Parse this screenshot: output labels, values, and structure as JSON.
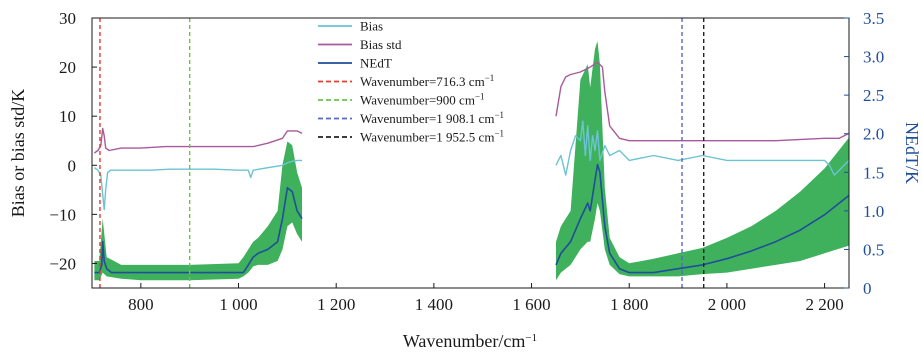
{
  "chart_data": {
    "type": "line",
    "xlabel": "Wavenumber/cm",
    "xlabel_sup": "−1",
    "ylabel": "Bias or bias std/K",
    "y2label": "NEdT/K",
    "xlim": [
      700,
      2250
    ],
    "ylim": [
      -25,
      30
    ],
    "y2lim": [
      0,
      3.5
    ],
    "x_ticks": [
      800,
      1000,
      1200,
      1400,
      1600,
      1800,
      2000,
      2200
    ],
    "x_tick_labels": [
      "800",
      "1 000",
      "1 200",
      "1 400",
      "1 600",
      "1 800",
      "2 000",
      "2 200"
    ],
    "y_ticks": [
      -20,
      -10,
      0,
      10,
      20,
      30
    ],
    "y_tick_labels": [
      "−20",
      "−10",
      "0",
      "10",
      "20",
      "30"
    ],
    "y2_ticks": [
      0,
      0.5,
      1.0,
      1.5,
      2.0,
      2.5,
      3.0,
      3.5
    ],
    "y2_tick_labels": [
      "0",
      "0.5",
      "1.0",
      "1.5",
      "2.0",
      "2.5",
      "3.0",
      "3.5"
    ],
    "colors": {
      "bias": "#6bc3d3",
      "bias_std": "#a75a9c",
      "nedt": "#1f4e9a",
      "band": "#2aa84a",
      "vline_716": "#e03c2f",
      "vline_900": "#6cc24a",
      "vline_1908": "#5866c8",
      "vline_1952": "#222222",
      "axis_right": "#1f4e9a"
    },
    "legend": [
      {
        "label": "Bias",
        "key": "bias",
        "style": "solid"
      },
      {
        "label": "Bias std",
        "key": "bias_std",
        "style": "solid"
      },
      {
        "label": "NEdT",
        "key": "nedt",
        "style": "solid"
      },
      {
        "label": "Wavenumber=716.3 cm",
        "sup": "−1",
        "key": "vline_716",
        "style": "dashed"
      },
      {
        "label": "Wavenumber=900 cm",
        "sup": "−1",
        "key": "vline_900",
        "style": "dashed"
      },
      {
        "label": "Wavenumber=1 908.1 cm",
        "sup": "−1",
        "key": "vline_1908",
        "style": "dashed"
      },
      {
        "label": "Wavenumber=1 952.5 cm",
        "sup": "−1",
        "key": "vline_1952",
        "style": "dashed"
      }
    ],
    "vlines": [
      {
        "x": 716.3,
        "key": "vline_716"
      },
      {
        "x": 900,
        "key": "vline_900"
      },
      {
        "x": 1908.1,
        "key": "vline_1908"
      },
      {
        "x": 1952.5,
        "key": "vline_1952"
      }
    ],
    "series": [
      {
        "name": "Bias",
        "key": "bias",
        "axis": "left",
        "segments": [
          {
            "x": [
              705,
              712,
              718,
              722,
              725,
              728,
              732,
              738,
              750,
              780,
              820,
              860,
              900,
              950,
              1000,
              1020,
              1025,
              1030,
              1060,
              1090,
              1100,
              1110,
              1120,
              1130
            ],
            "y": [
              -0.5,
              -1,
              -2,
              -6,
              -9,
              -5,
              -1.5,
              -1,
              -1,
              -1,
              -1,
              -0.8,
              -0.8,
              -0.8,
              -1,
              -1,
              -2.5,
              -1,
              -0.5,
              0,
              0.5,
              0.8,
              1,
              1
            ]
          },
          {
            "x": [
              1650,
              1660,
              1670,
              1680,
              1690,
              1700,
              1705,
              1710,
              1715,
              1720,
              1725,
              1730,
              1735,
              1740,
              1750,
              1760,
              1780,
              1800,
              1850,
              1900,
              1950,
              2000,
              2050,
              2100,
              2150,
              2200,
              2210,
              2220,
              2230,
              2240,
              2250
            ],
            "y": [
              0,
              2,
              -2,
              3,
              6,
              5,
              9,
              2,
              8,
              1,
              6,
              3,
              7,
              1,
              4,
              2,
              3,
              1,
              2,
              1,
              2,
              1,
              1,
              1,
              1,
              1,
              0,
              -2,
              -1,
              0,
              1
            ]
          }
        ]
      },
      {
        "name": "Bias std",
        "key": "bias_std",
        "axis": "left",
        "segments": [
          {
            "x": [
              705,
              712,
              718,
              722,
              725,
              728,
              735,
              760,
              800,
              850,
              900,
              950,
              1000,
              1020,
              1030,
              1060,
              1090,
              1100,
              1110,
              1120,
              1130
            ],
            "y": [
              2.5,
              3,
              4,
              7.5,
              6,
              3.5,
              3,
              3.5,
              3.5,
              3.8,
              3.8,
              3.8,
              3.8,
              3.8,
              3.8,
              4.5,
              5.5,
              7,
              7,
              7,
              6.5
            ]
          },
          {
            "x": [
              1650,
              1660,
              1670,
              1680,
              1700,
              1720,
              1735,
              1745,
              1750,
              1760,
              1780,
              1800,
              1850,
              1900,
              2000,
              2100,
              2200,
              2230,
              2250
            ],
            "y": [
              10,
              16,
              18,
              18.5,
              19,
              20,
              21,
              20,
              15,
              8,
              5.5,
              5,
              5,
              5,
              5,
              5,
              5.5,
              5.5,
              6.5
            ]
          }
        ]
      },
      {
        "name": "NEdT",
        "key": "nedt",
        "axis": "right",
        "segments": [
          {
            "x": [
              705,
              715,
              720,
              722,
              725,
              730,
              740,
              760,
              800,
              850,
              900,
              950,
              1000,
              1010,
              1020,
              1030,
              1040,
              1060,
              1080,
              1090,
              1100,
              1110,
              1120,
              1130
            ],
            "y": [
              0.2,
              0.2,
              0.3,
              0.6,
              0.35,
              0.25,
              0.2,
              0.2,
              0.2,
              0.2,
              0.2,
              0.2,
              0.2,
              0.2,
              0.3,
              0.4,
              0.45,
              0.5,
              0.6,
              0.9,
              1.3,
              1.25,
              1.0,
              0.9
            ]
          },
          {
            "x": [
              1650,
              1660,
              1680,
              1700,
              1715,
              1720,
              1730,
              1735,
              1740,
              1750,
              1760,
              1780,
              1800,
              1850,
              1900,
              1950,
              2000,
              2050,
              2100,
              2150,
              2200,
              2250
            ],
            "y": [
              0.3,
              0.45,
              0.6,
              0.9,
              1.1,
              1.0,
              1.4,
              1.6,
              1.5,
              0.8,
              0.45,
              0.25,
              0.2,
              0.2,
              0.25,
              0.3,
              0.38,
              0.48,
              0.6,
              0.75,
              0.95,
              1.2
            ]
          }
        ]
      },
      {
        "name": "NEdT band",
        "key": "band",
        "axis": "right",
        "segments": [
          {
            "x": [
              705,
              715,
              722,
              730,
              760,
              800,
              900,
              1000,
              1010,
              1020,
              1030,
              1040,
              1060,
              1080,
              1090,
              1100,
              1110,
              1120,
              1130
            ],
            "lower": [
              0.1,
              0.1,
              0.2,
              0.15,
              0.12,
              0.1,
              0.1,
              0.12,
              0.15,
              0.2,
              0.28,
              0.3,
              0.3,
              0.35,
              0.5,
              0.8,
              0.85,
              0.7,
              0.6
            ],
            "upper": [
              0.35,
              0.35,
              0.9,
              0.4,
              0.3,
              0.3,
              0.3,
              0.32,
              0.4,
              0.5,
              0.6,
              0.65,
              0.8,
              1.0,
              1.6,
              1.9,
              1.85,
              1.5,
              1.3
            ]
          },
          {
            "x": [
              1650,
              1660,
              1680,
              1700,
              1715,
              1720,
              1730,
              1735,
              1740,
              1750,
              1760,
              1780,
              1800,
              1850,
              1900,
              1950,
              2000,
              2050,
              2100,
              2150,
              2200,
              2250
            ],
            "lower": [
              0.1,
              0.2,
              0.3,
              0.5,
              0.6,
              0.6,
              0.9,
              1.1,
              1.0,
              0.5,
              0.3,
              0.18,
              0.15,
              0.15,
              0.15,
              0.18,
              0.2,
              0.25,
              0.3,
              0.35,
              0.45,
              0.55
            ],
            "upper": [
              0.6,
              0.8,
              1.0,
              2.7,
              2.9,
              2.6,
              3.1,
              3.2,
              2.9,
              1.3,
              0.65,
              0.4,
              0.32,
              0.38,
              0.45,
              0.52,
              0.65,
              0.8,
              1.0,
              1.25,
              1.55,
              1.95
            ]
          }
        ]
      }
    ]
  }
}
